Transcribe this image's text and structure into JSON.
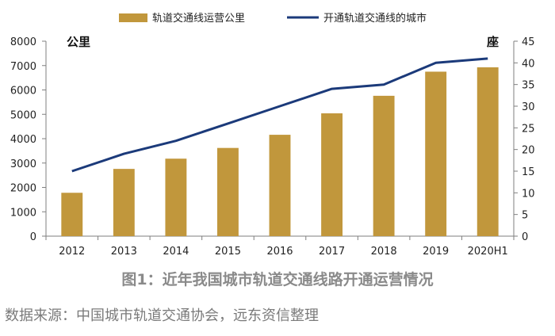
{
  "chart_data": {
    "type": "bar+line",
    "categories": [
      "2012",
      "2013",
      "2014",
      "2015",
      "2016",
      "2017",
      "2018",
      "2019",
      "2020H1"
    ],
    "series": [
      {
        "name": "轨道交通线运营公里",
        "type": "bar",
        "axis": "left",
        "color": "#c1973c",
        "values": [
          1780,
          2760,
          3180,
          3620,
          4160,
          5040,
          5760,
          6750,
          6930
        ]
      },
      {
        "name": "开通轨道交通线的城市",
        "type": "line",
        "axis": "right",
        "color": "#1b3a7a",
        "values": [
          15,
          19,
          22,
          26,
          30,
          34,
          35,
          40,
          41
        ]
      }
    ],
    "y_left": {
      "unit": "公里",
      "min": 0,
      "max": 8000,
      "step": 1000,
      "ticks": [
        "0",
        "1000",
        "2000",
        "3000",
        "4000",
        "5000",
        "6000",
        "7000",
        "8000"
      ]
    },
    "y_right": {
      "unit": "座",
      "min": 0,
      "max": 45,
      "step": 5,
      "ticks": [
        "0",
        "5",
        "10",
        "15",
        "20",
        "25",
        "30",
        "35",
        "40",
        "45"
      ]
    },
    "grid": false,
    "legend_position": "top"
  },
  "caption": "图1：近年我国城市轨道交通线路开通运营情况",
  "source": "数据来源：中国城市轨道交通协会，远东资信整理"
}
